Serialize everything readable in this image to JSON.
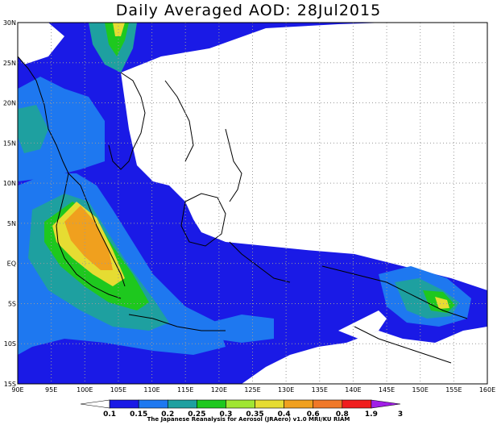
{
  "title": "Daily Averaged AOD: 28Jul2015",
  "map": {
    "lat_labels": [
      "30N",
      "25N",
      "20N",
      "15N",
      "10N",
      "5N",
      "EQ",
      "5S",
      "10S",
      "15S"
    ],
    "lon_labels": [
      "90E",
      "95E",
      "100E",
      "105E",
      "110E",
      "115E",
      "120E",
      "125E",
      "130E",
      "135E",
      "140E",
      "145E",
      "150E",
      "155E",
      "160E"
    ]
  },
  "colorbar": {
    "levels": [
      "0.1",
      "0.15",
      "0.2",
      "0.25",
      "0.3",
      "0.35",
      "0.4",
      "0.6",
      "0.8",
      "1.9",
      "3"
    ],
    "colors": [
      "#ffffff",
      "#1a1ae6",
      "#1e78f0",
      "#1ea0a0",
      "#1ec81e",
      "#a0e632",
      "#e6dc32",
      "#f0a01e",
      "#f07828",
      "#f01e1e",
      "#a01ee6"
    ]
  },
  "credit": "The Japanese Reanalysis for Aerosol (JRAero) v1.0 MRI/KU RIAM"
}
